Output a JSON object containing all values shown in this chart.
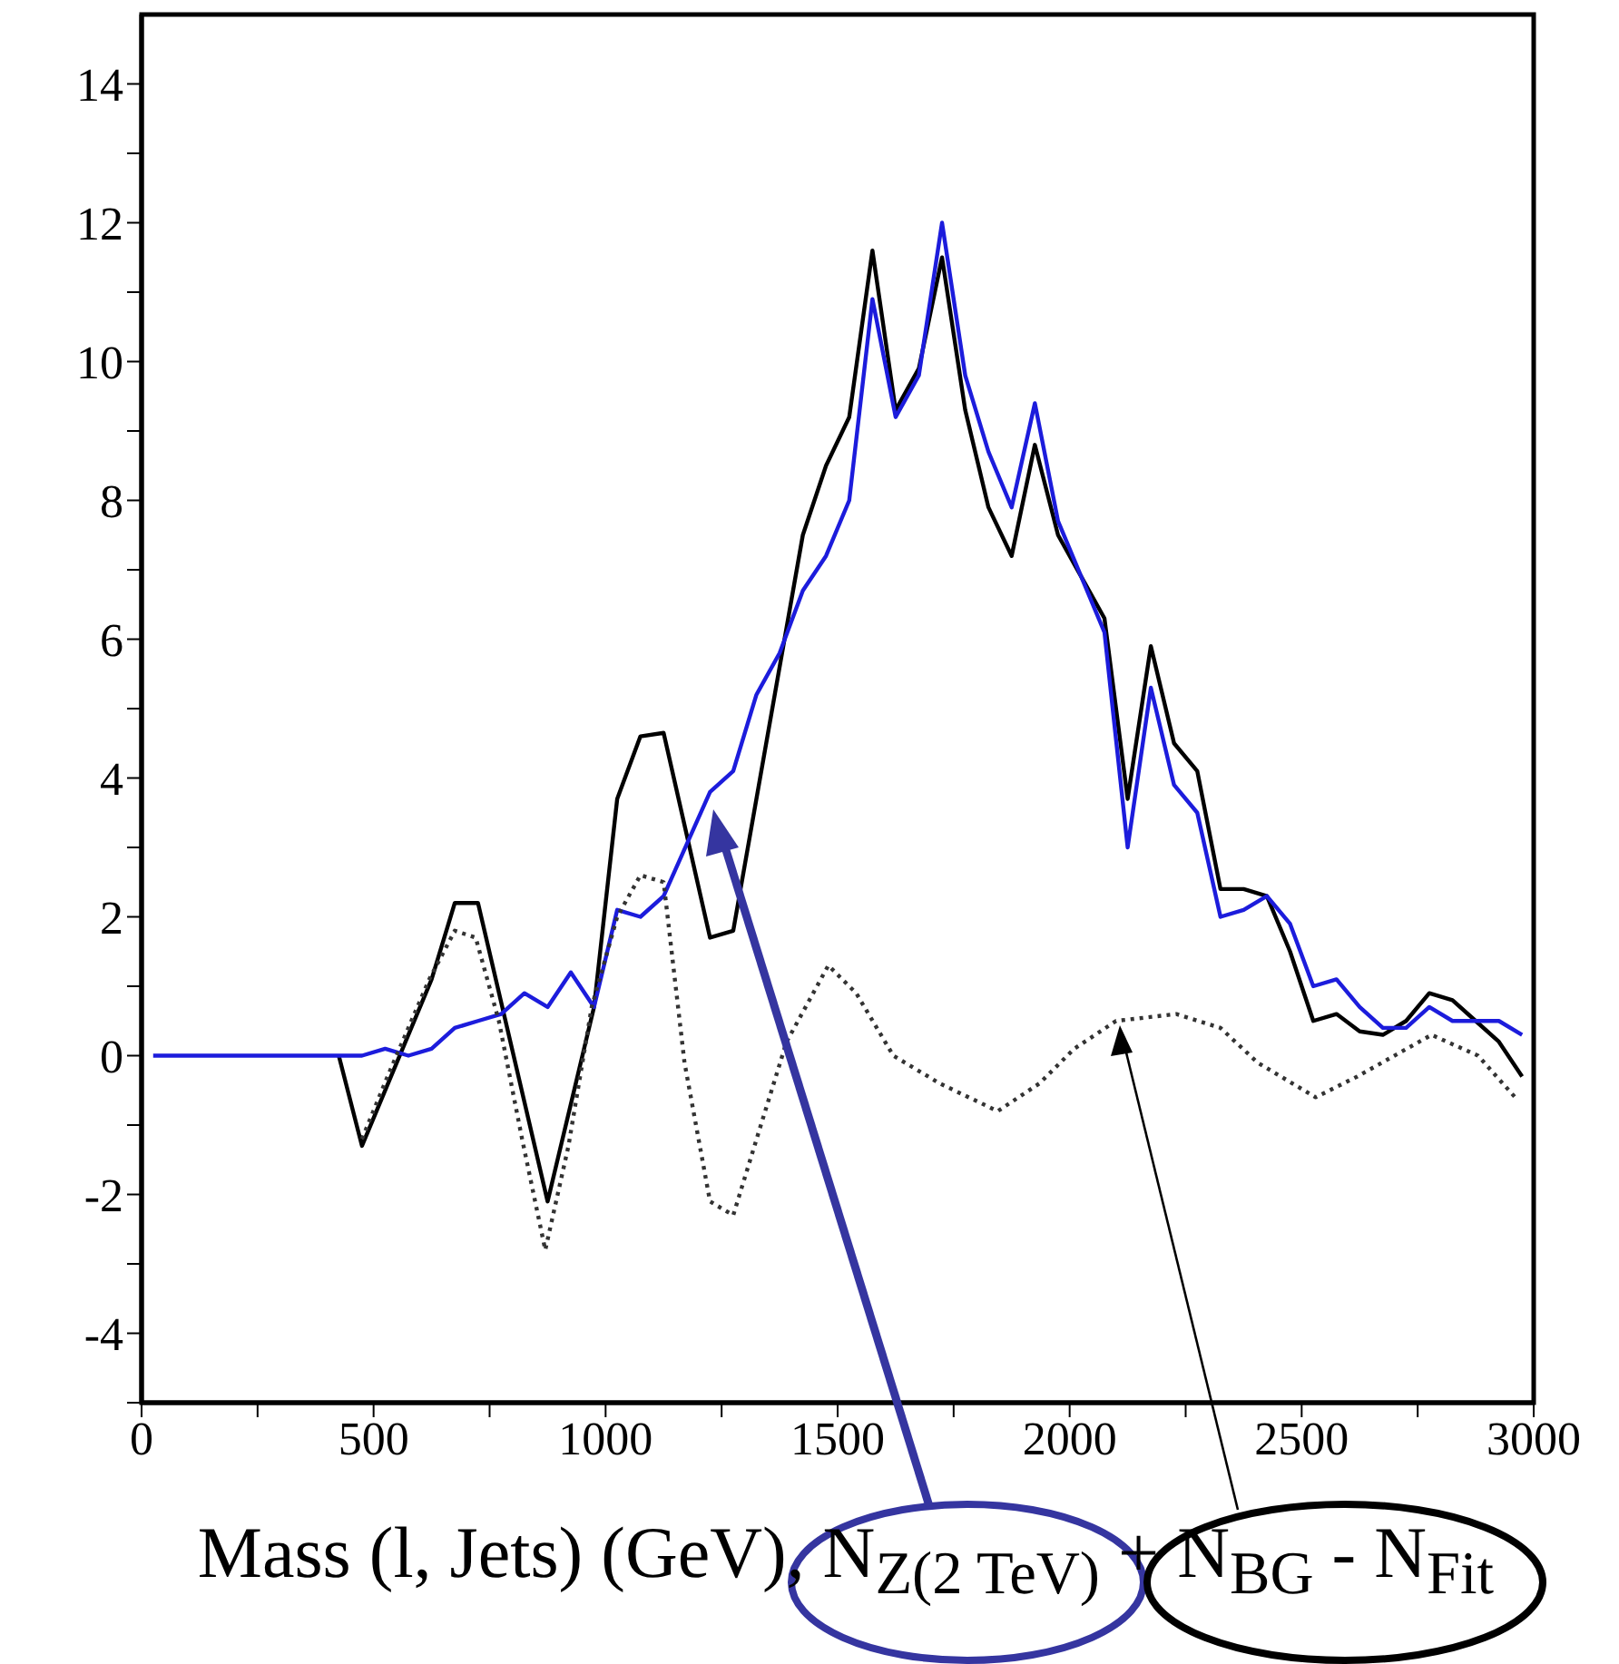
{
  "chart_data": {
    "type": "line",
    "xlabel": "Mass (l, Jets) (GeV), N$_{Z(2 TeV)}$ + N$_{BG}$ - N$_{Fit}$",
    "xlim": [
      0,
      3000
    ],
    "xticks": [
      0,
      {
        "value": 250,
        "label": null
      },
      500,
      {
        "value": 750,
        "label": null
      },
      1000,
      {
        "value": 1250,
        "label": null
      },
      1500,
      {
        "value": 1750,
        "label": null
      },
      2000,
      {
        "value": 2250,
        "label": null
      },
      2500,
      {
        "value": 2750,
        "label": null
      },
      3000
    ],
    "ylim": [
      -5,
      15
    ],
    "yticks": [
      {
        "value": -5,
        "label": null
      },
      -4,
      {
        "value": -3,
        "label": null
      },
      -2,
      {
        "value": -1,
        "label": null
      },
      0,
      {
        "value": 1,
        "label": null
      },
      2,
      {
        "value": 3,
        "label": null
      },
      4,
      {
        "value": 5,
        "label": null
      },
      6,
      {
        "value": 7,
        "label": null
      },
      8,
      {
        "value": 9,
        "label": null
      },
      10,
      {
        "value": 11,
        "label": null
      },
      12,
      {
        "value": 13,
        "label": null
      },
      14
    ],
    "grid": false,
    "series": [
      {
        "color": "#000000",
        "line_style": "solid",
        "x": [
          425,
          475,
          625,
          675,
          725,
          875,
          975,
          1025,
          1075,
          1125,
          1225,
          1275,
          1425,
          1475,
          1525,
          1575,
          1625,
          1675,
          1725,
          1775,
          1825,
          1875,
          1925,
          1975,
          2025,
          2075,
          2125,
          2175,
          2225,
          2275,
          2325,
          2375,
          2425,
          2475,
          2525,
          2575,
          2625,
          2675,
          2725,
          2775,
          2825,
          2875,
          2925,
          2975
        ],
        "values": [
          0,
          -1.3,
          1.1,
          2.2,
          2.2,
          -2.1,
          0.7,
          3.7,
          4.6,
          4.65,
          1.7,
          1.8,
          7.5,
          8.5,
          9.2,
          11.6,
          9.3,
          9.9,
          11.5,
          9.3,
          7.9,
          7.2,
          8.8,
          7.5,
          6.9,
          6.3,
          3.7,
          5.9,
          4.5,
          4.1,
          2.4,
          2.4,
          2.3,
          1.5,
          0.5,
          0.6,
          0.35,
          0.3,
          0.5,
          0.9,
          0.8,
          0.5,
          0.2,
          -0.3
        ]
      },
      {
        "color": "#1c1cdc",
        "line_style": "solid",
        "x": [
          25,
          475,
          525,
          575,
          625,
          675,
          725,
          775,
          825,
          875,
          925,
          975,
          1025,
          1075,
          1125,
          1225,
          1275,
          1325,
          1375,
          1425,
          1475,
          1525,
          1575,
          1625,
          1675,
          1725,
          1775,
          1825,
          1875,
          1925,
          1975,
          2025,
          2075,
          2125,
          2175,
          2225,
          2275,
          2325,
          2375,
          2425,
          2475,
          2525,
          2575,
          2625,
          2675,
          2725,
          2775,
          2825,
          2875,
          2925,
          2975
        ],
        "values": [
          0,
          0,
          0.1,
          0,
          0.1,
          0.4,
          0.5,
          0.6,
          0.9,
          0.7,
          1.2,
          0.7,
          2.1,
          2.0,
          2.3,
          3.8,
          4.1,
          5.2,
          5.8,
          6.7,
          7.2,
          8.0,
          10.9,
          9.2,
          9.8,
          12.0,
          9.8,
          8.7,
          7.9,
          9.4,
          7.7,
          6.9,
          6.1,
          3.0,
          5.3,
          3.9,
          3.5,
          2.0,
          2.1,
          2.3,
          1.9,
          1.0,
          1.1,
          0.7,
          0.4,
          0.4,
          0.7,
          0.5,
          0.5,
          0.5,
          0.3
        ]
      },
      {
        "color": "#333333",
        "line_style": "dotted",
        "x": [
          475,
          530,
          620,
          675,
          720,
          770,
          820,
          870,
          920,
          970,
          1025,
          1075,
          1125,
          1170,
          1225,
          1275,
          1330,
          1390,
          1480,
          1540,
          1620,
          1720,
          1845,
          1935,
          2010,
          2100,
          2230,
          2325,
          2405,
          2530,
          2620,
          2780,
          2880,
          2960
        ],
        "values": [
          -1.2,
          -0.3,
          1.1,
          1.8,
          1.7,
          0.5,
          -1.2,
          -2.8,
          -1.3,
          0.7,
          2.0,
          2.6,
          2.5,
          -0.1,
          -2.1,
          -2.3,
          -1.1,
          0.2,
          1.3,
          0.9,
          0,
          -0.4,
          -0.8,
          -0.4,
          0.1,
          0.5,
          0.6,
          0.4,
          -0.1,
          -0.6,
          -0.3,
          0.3,
          0,
          -0.6
        ]
      }
    ]
  }
}
